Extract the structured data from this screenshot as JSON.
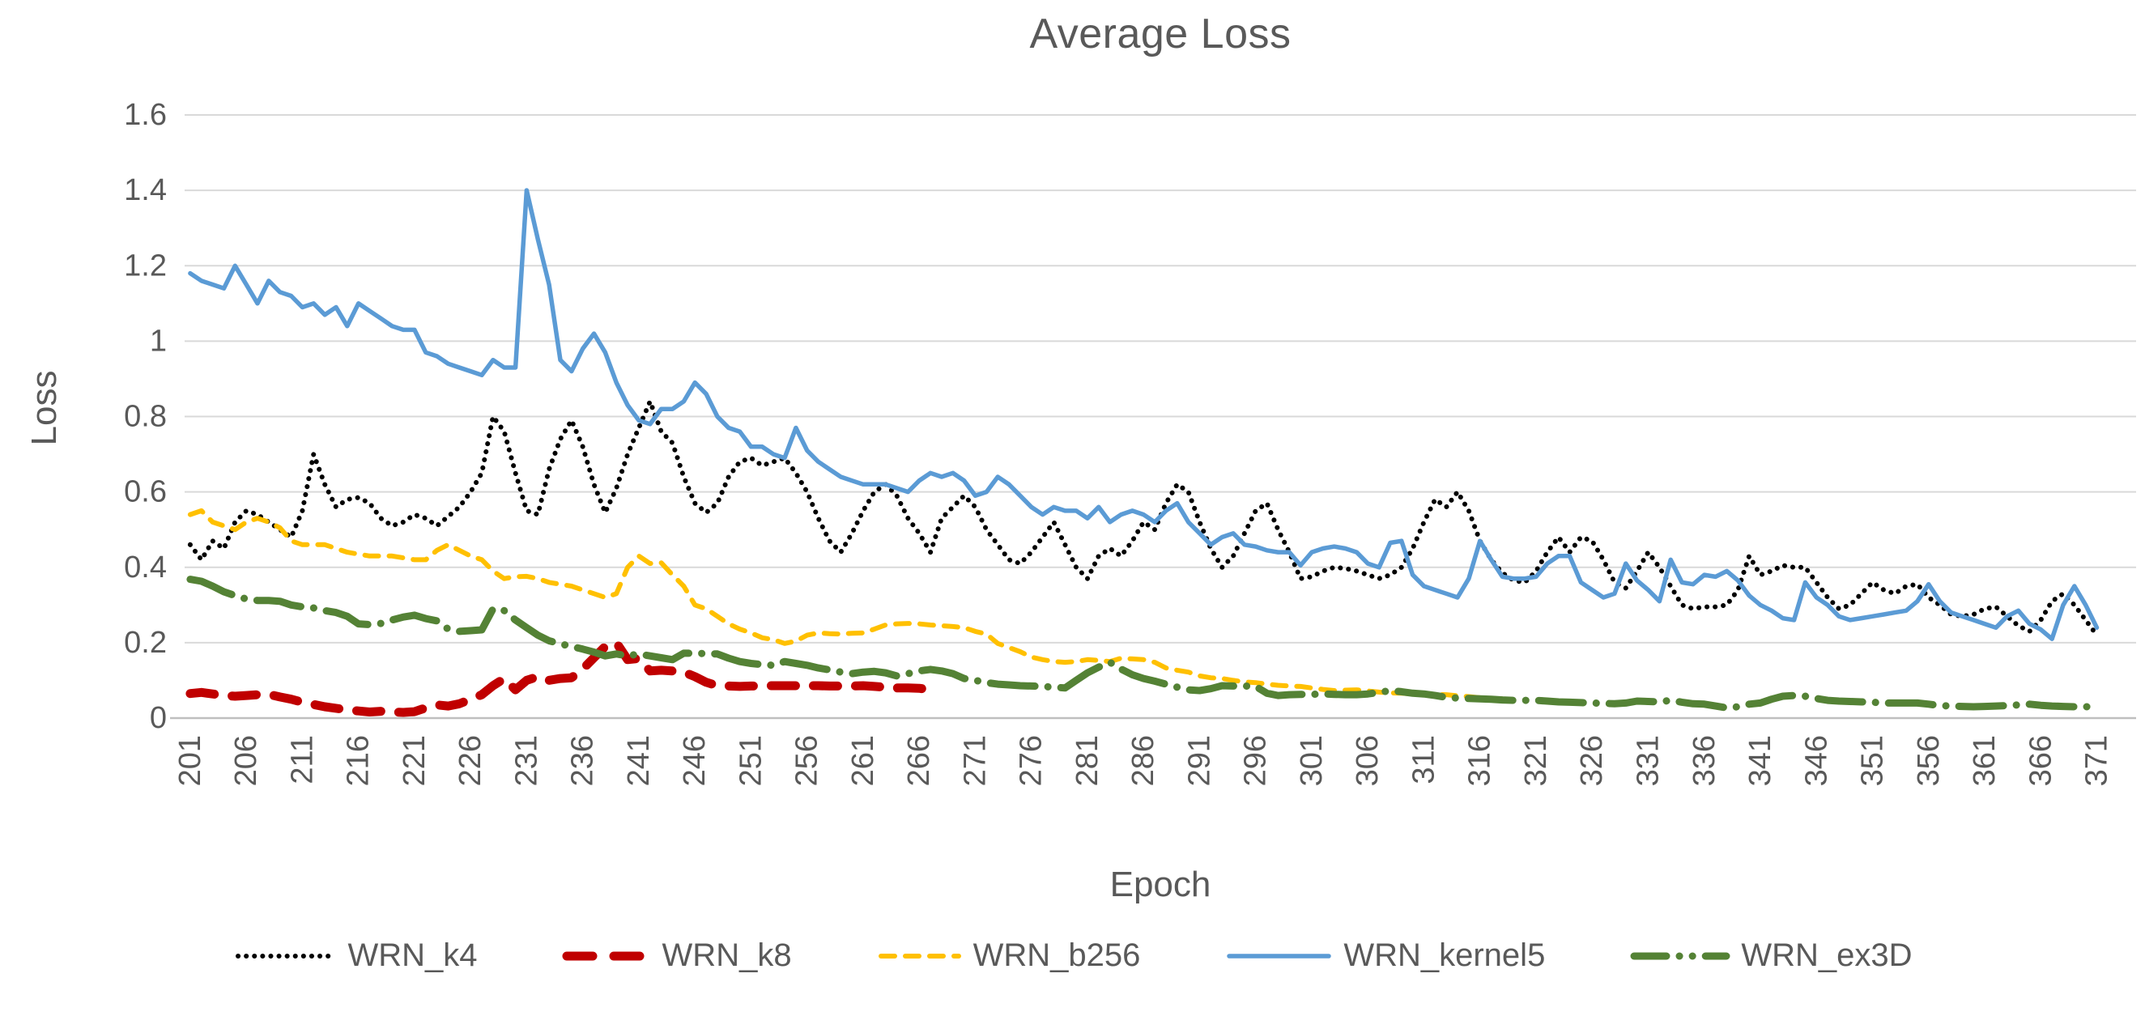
{
  "chart": {
    "title": "Average Loss",
    "y_axis_title": "Loss",
    "x_axis_title": "Epoch",
    "text_color": "#595959",
    "gridline_color": "#D9D9D9",
    "axis_line_color": "#BFBFBF",
    "background_color": "#FFFFFF"
  },
  "chart_data": {
    "type": "line",
    "title": "Average Loss",
    "xlabel": "Epoch",
    "ylabel": "Loss",
    "ylim": [
      0,
      1.6
    ],
    "y_ticks": [
      "1.6",
      "1.4",
      "1.2",
      "1",
      "0.8",
      "0.6",
      "0.4",
      "0.2",
      "0"
    ],
    "x_start": 201,
    "x_tick_interval": 5,
    "x_slots": 174,
    "x_ticks": [
      "201",
      "206",
      "211",
      "216",
      "221",
      "226",
      "231",
      "236",
      "241",
      "246",
      "251",
      "256",
      "261",
      "266",
      "271",
      "276",
      "281",
      "286",
      "291",
      "296",
      "301",
      "306",
      "311",
      "316",
      "321",
      "326",
      "331",
      "336",
      "341",
      "346",
      "351",
      "356",
      "361",
      "366",
      "371"
    ],
    "grid": "horizontal",
    "legend_position": "bottom",
    "series": [
      {
        "name": "WRN_k4",
        "color": "#000000",
        "style": "dotted",
        "stroke_width": 6,
        "dash": "0.1 10",
        "legend_dash": "0.1 10",
        "values": [
          0.46,
          0.42,
          0.47,
          0.45,
          0.52,
          0.55,
          0.54,
          0.52,
          0.5,
          0.48,
          0.55,
          0.7,
          0.62,
          0.56,
          0.58,
          0.585,
          0.57,
          0.53,
          0.51,
          0.52,
          0.54,
          0.53,
          0.51,
          0.535,
          0.56,
          0.6,
          0.65,
          0.8,
          0.76,
          0.65,
          0.55,
          0.54,
          0.66,
          0.74,
          0.79,
          0.72,
          0.62,
          0.545,
          0.61,
          0.7,
          0.77,
          0.84,
          0.76,
          0.73,
          0.64,
          0.57,
          0.545,
          0.57,
          0.64,
          0.68,
          0.69,
          0.67,
          0.68,
          0.69,
          0.65,
          0.6,
          0.53,
          0.47,
          0.44,
          0.49,
          0.55,
          0.6,
          0.62,
          0.59,
          0.53,
          0.49,
          0.44,
          0.53,
          0.56,
          0.59,
          0.56,
          0.5,
          0.46,
          0.42,
          0.41,
          0.44,
          0.48,
          0.52,
          0.46,
          0.4,
          0.37,
          0.43,
          0.45,
          0.43,
          0.47,
          0.52,
          0.5,
          0.57,
          0.62,
          0.6,
          0.52,
          0.45,
          0.4,
          0.43,
          0.49,
          0.55,
          0.57,
          0.5,
          0.44,
          0.37,
          0.375,
          0.39,
          0.4,
          0.397,
          0.39,
          0.38,
          0.37,
          0.38,
          0.4,
          0.45,
          0.52,
          0.58,
          0.56,
          0.6,
          0.55,
          0.47,
          0.42,
          0.385,
          0.365,
          0.36,
          0.39,
          0.44,
          0.48,
          0.44,
          0.48,
          0.47,
          0.42,
          0.36,
          0.345,
          0.39,
          0.44,
          0.4,
          0.35,
          0.3,
          0.29,
          0.295,
          0.295,
          0.3,
          0.34,
          0.43,
          0.38,
          0.39,
          0.405,
          0.4,
          0.4,
          0.36,
          0.32,
          0.29,
          0.3,
          0.33,
          0.36,
          0.34,
          0.33,
          0.35,
          0.355,
          0.32,
          0.3,
          0.275,
          0.27,
          0.275,
          0.29,
          0.295,
          0.27,
          0.245,
          0.23,
          0.26,
          0.31,
          0.33,
          0.3,
          0.26,
          0.22
        ]
      },
      {
        "name": "WRN_k8",
        "color": "#C00000",
        "style": "dashed",
        "stroke_width": 11,
        "dash": "30 22",
        "legend_dash": "32 26",
        "values": [
          0.065,
          0.068,
          0.064,
          0.06,
          0.058,
          0.06,
          0.062,
          0.063,
          0.056,
          0.05,
          0.042,
          0.036,
          0.03,
          0.026,
          0.022,
          0.019,
          0.016,
          0.018,
          0.016,
          0.015,
          0.017,
          0.027,
          0.035,
          0.032,
          0.038,
          0.05,
          0.062,
          0.086,
          0.105,
          0.075,
          0.1,
          0.11,
          0.1,
          0.105,
          0.107,
          0.13,
          0.16,
          0.19,
          0.2,
          0.155,
          0.158,
          0.125,
          0.127,
          0.125,
          0.122,
          0.11,
          0.095,
          0.086,
          0.085,
          0.084,
          0.085,
          0.086,
          0.086,
          0.086,
          0.086,
          0.086,
          0.086,
          0.085,
          0.085,
          0.085,
          0.086,
          0.084,
          0.082,
          0.08,
          0.08,
          0.079,
          0.075
        ]
      },
      {
        "name": "WRN_b256",
        "color": "#FFC000",
        "style": "dashed",
        "stroke_width": 6,
        "dash": "17 13",
        "legend_dash": "17 13",
        "values": [
          0.54,
          0.55,
          0.52,
          0.51,
          0.5,
          0.52,
          0.53,
          0.52,
          0.505,
          0.47,
          0.46,
          0.46,
          0.46,
          0.45,
          0.44,
          0.435,
          0.43,
          0.43,
          0.43,
          0.425,
          0.42,
          0.42,
          0.445,
          0.46,
          0.445,
          0.43,
          0.42,
          0.39,
          0.37,
          0.375,
          0.376,
          0.37,
          0.36,
          0.355,
          0.35,
          0.34,
          0.33,
          0.32,
          0.33,
          0.4,
          0.43,
          0.41,
          0.412,
          0.38,
          0.35,
          0.3,
          0.29,
          0.27,
          0.25,
          0.236,
          0.226,
          0.213,
          0.208,
          0.198,
          0.204,
          0.22,
          0.226,
          0.224,
          0.223,
          0.225,
          0.226,
          0.236,
          0.247,
          0.25,
          0.251,
          0.25,
          0.247,
          0.245,
          0.243,
          0.24,
          0.23,
          0.223,
          0.198,
          0.187,
          0.176,
          0.162,
          0.155,
          0.15,
          0.148,
          0.15,
          0.155,
          0.153,
          0.15,
          0.159,
          0.157,
          0.155,
          0.148,
          0.133,
          0.127,
          0.122,
          0.112,
          0.107,
          0.105,
          0.1,
          0.096,
          0.094,
          0.09,
          0.087,
          0.085,
          0.084,
          0.08,
          0.076,
          0.073,
          0.074,
          0.075,
          0.072,
          0.069,
          0.067,
          0.066,
          0.064,
          0.063,
          0.063,
          0.062,
          0.059,
          0.057,
          0.054,
          0.052,
          0.051
        ]
      },
      {
        "name": "WRN_kernel5",
        "color": "#5B9BD5",
        "style": "solid",
        "stroke_width": 5.5,
        "dash": "",
        "legend_dash": "",
        "values": [
          1.18,
          1.16,
          1.15,
          1.14,
          1.2,
          1.15,
          1.1,
          1.16,
          1.13,
          1.12,
          1.09,
          1.1,
          1.07,
          1.09,
          1.04,
          1.1,
          1.08,
          1.06,
          1.04,
          1.03,
          1.03,
          0.97,
          0.96,
          0.94,
          0.93,
          0.92,
          0.91,
          0.95,
          0.93,
          0.93,
          1.4,
          1.27,
          1.15,
          0.95,
          0.92,
          0.98,
          1.02,
          0.97,
          0.89,
          0.83,
          0.79,
          0.78,
          0.82,
          0.82,
          0.84,
          0.89,
          0.86,
          0.8,
          0.77,
          0.76,
          0.72,
          0.72,
          0.7,
          0.69,
          0.77,
          0.71,
          0.68,
          0.66,
          0.64,
          0.63,
          0.62,
          0.62,
          0.62,
          0.61,
          0.6,
          0.63,
          0.65,
          0.64,
          0.65,
          0.63,
          0.59,
          0.6,
          0.64,
          0.62,
          0.59,
          0.56,
          0.54,
          0.56,
          0.55,
          0.55,
          0.53,
          0.56,
          0.52,
          0.54,
          0.55,
          0.54,
          0.52,
          0.55,
          0.57,
          0.52,
          0.49,
          0.46,
          0.48,
          0.49,
          0.46,
          0.455,
          0.445,
          0.44,
          0.44,
          0.405,
          0.44,
          0.45,
          0.455,
          0.45,
          0.44,
          0.41,
          0.4,
          0.465,
          0.47,
          0.38,
          0.35,
          0.34,
          0.33,
          0.32,
          0.37,
          0.47,
          0.42,
          0.375,
          0.37,
          0.37,
          0.375,
          0.41,
          0.43,
          0.43,
          0.36,
          0.34,
          0.32,
          0.33,
          0.41,
          0.365,
          0.34,
          0.31,
          0.42,
          0.36,
          0.355,
          0.38,
          0.375,
          0.39,
          0.365,
          0.325,
          0.3,
          0.285,
          0.265,
          0.26,
          0.36,
          0.32,
          0.3,
          0.27,
          0.26,
          0.265,
          0.27,
          0.275,
          0.28,
          0.285,
          0.31,
          0.355,
          0.31,
          0.28,
          0.27,
          0.26,
          0.25,
          0.24,
          0.27,
          0.285,
          0.25,
          0.235,
          0.21,
          0.3,
          0.35,
          0.3,
          0.24
        ]
      },
      {
        "name": "WRN_ex3D",
        "color": "#548235",
        "style": "dash-dot",
        "stroke_width": 9,
        "dash": "55 16 0.1 16",
        "legend_dash": "40 16 0.1 16 0.1 16",
        "values": [
          0.368,
          0.363,
          0.35,
          0.335,
          0.325,
          0.316,
          0.312,
          0.312,
          0.31,
          0.3,
          0.295,
          0.292,
          0.285,
          0.28,
          0.27,
          0.25,
          0.248,
          0.251,
          0.26,
          0.268,
          0.273,
          0.264,
          0.258,
          0.236,
          0.23,
          0.232,
          0.234,
          0.29,
          0.285,
          0.26,
          0.24,
          0.22,
          0.205,
          0.197,
          0.19,
          0.183,
          0.175,
          0.165,
          0.17,
          0.165,
          0.17,
          0.165,
          0.16,
          0.155,
          0.172,
          0.172,
          0.171,
          0.17,
          0.159,
          0.15,
          0.145,
          0.142,
          0.14,
          0.15,
          0.145,
          0.14,
          0.133,
          0.128,
          0.122,
          0.118,
          0.122,
          0.124,
          0.12,
          0.112,
          0.118,
          0.125,
          0.129,
          0.125,
          0.118,
          0.105,
          0.1,
          0.094,
          0.09,
          0.088,
          0.086,
          0.085,
          0.084,
          0.082,
          0.08,
          0.1,
          0.12,
          0.135,
          0.148,
          0.13,
          0.115,
          0.105,
          0.098,
          0.09,
          0.082,
          0.075,
          0.073,
          0.078,
          0.086,
          0.085,
          0.085,
          0.084,
          0.066,
          0.06,
          0.062,
          0.063,
          0.063,
          0.064,
          0.063,
          0.062,
          0.062,
          0.064,
          0.068,
          0.073,
          0.07,
          0.066,
          0.064,
          0.06,
          0.055,
          0.053,
          0.052,
          0.051,
          0.05,
          0.048,
          0.047,
          0.047,
          0.047,
          0.045,
          0.043,
          0.042,
          0.041,
          0.04,
          0.039,
          0.038,
          0.04,
          0.045,
          0.044,
          0.043,
          0.047,
          0.042,
          0.038,
          0.037,
          0.032,
          0.027,
          0.03,
          0.037,
          0.04,
          0.05,
          0.058,
          0.06,
          0.058,
          0.052,
          0.047,
          0.045,
          0.044,
          0.043,
          0.042,
          0.04,
          0.04,
          0.04,
          0.04,
          0.037,
          0.033,
          0.032,
          0.031,
          0.03,
          0.031,
          0.032,
          0.033,
          0.035,
          0.037,
          0.034,
          0.032,
          0.031,
          0.03,
          0.03,
          0.03
        ]
      }
    ]
  }
}
